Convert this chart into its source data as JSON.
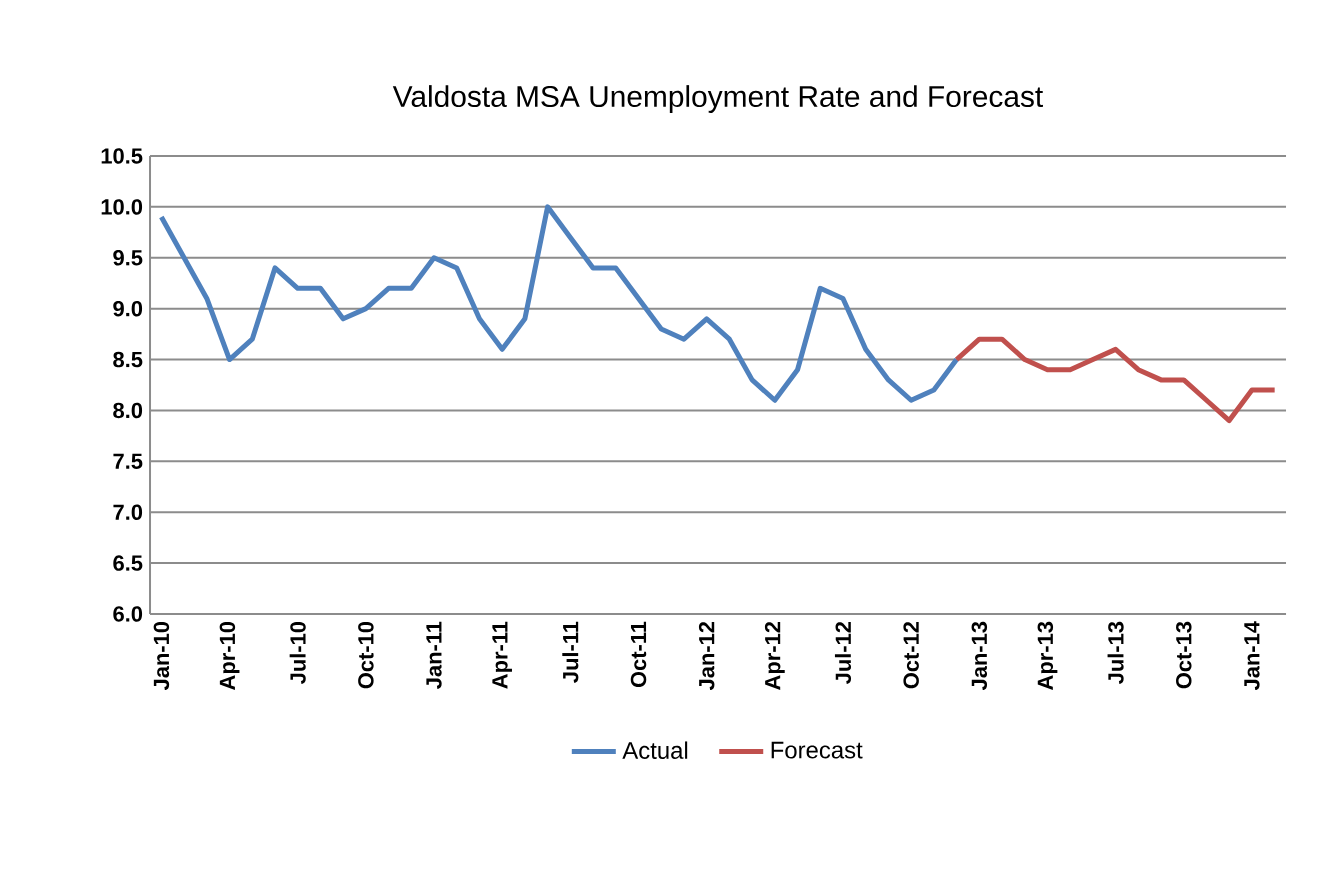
{
  "chart_data": {
    "type": "line",
    "title": "Valdosta MSA Unemployment Rate and Forecast",
    "categories": [
      "Jan-10",
      null,
      null,
      "Apr-10",
      null,
      null,
      "Jul-10",
      null,
      null,
      "Oct-10",
      null,
      null,
      "Jan-11",
      null,
      null,
      "Apr-11",
      null,
      null,
      "Jul-11",
      null,
      null,
      "Oct-11",
      null,
      null,
      "Jan-12",
      null,
      null,
      "Apr-12",
      null,
      null,
      "Jul-12",
      null,
      null,
      "Oct-12",
      null,
      null,
      "Jan-13",
      null,
      null,
      "Apr-13",
      null,
      null,
      "Jul-13",
      null,
      null,
      "Oct-13",
      null,
      null,
      "Jan-14",
      null
    ],
    "series": [
      {
        "name": "Actual",
        "color": "#4f81bd",
        "values": [
          9.9,
          9.5,
          9.1,
          8.5,
          8.7,
          9.4,
          9.2,
          9.2,
          8.9,
          9.0,
          9.2,
          9.2,
          9.5,
          9.4,
          8.9,
          8.6,
          8.9,
          10.0,
          9.7,
          9.4,
          9.4,
          9.1,
          8.8,
          8.7,
          8.9,
          8.7,
          8.3,
          8.1,
          8.4,
          9.2,
          9.1,
          8.6,
          8.3,
          8.1,
          8.2,
          8.5,
          null,
          null,
          null,
          null,
          null,
          null,
          null,
          null,
          null,
          null,
          null,
          null,
          null,
          null
        ]
      },
      {
        "name": "Forecast",
        "color": "#c0504d",
        "values": [
          null,
          null,
          null,
          null,
          null,
          null,
          null,
          null,
          null,
          null,
          null,
          null,
          null,
          null,
          null,
          null,
          null,
          null,
          null,
          null,
          null,
          null,
          null,
          null,
          null,
          null,
          null,
          null,
          null,
          null,
          null,
          null,
          null,
          null,
          null,
          8.5,
          8.7,
          8.7,
          8.5,
          8.4,
          8.4,
          8.5,
          8.6,
          8.4,
          8.3,
          8.3,
          8.1,
          7.9,
          8.2,
          8.2
        ]
      }
    ],
    "ylim": [
      6.0,
      10.5
    ],
    "yticks": [
      {
        "value": 6.0,
        "label": "6.0"
      },
      {
        "value": 6.5,
        "label": "6.5"
      },
      {
        "value": 7.0,
        "label": "7.0"
      },
      {
        "value": 7.5,
        "label": "7.5"
      },
      {
        "value": 8.0,
        "label": "8.0"
      },
      {
        "value": 8.5,
        "label": "8.5"
      },
      {
        "value": 9.0,
        "label": "9.0"
      },
      {
        "value": 9.5,
        "label": "9.5"
      },
      {
        "value": 10.0,
        "label": "10.0"
      },
      {
        "value": 10.5,
        "label": "10.5"
      }
    ],
    "grid": "y",
    "legend": "bottom",
    "marker": "none",
    "line_style": "solid"
  }
}
